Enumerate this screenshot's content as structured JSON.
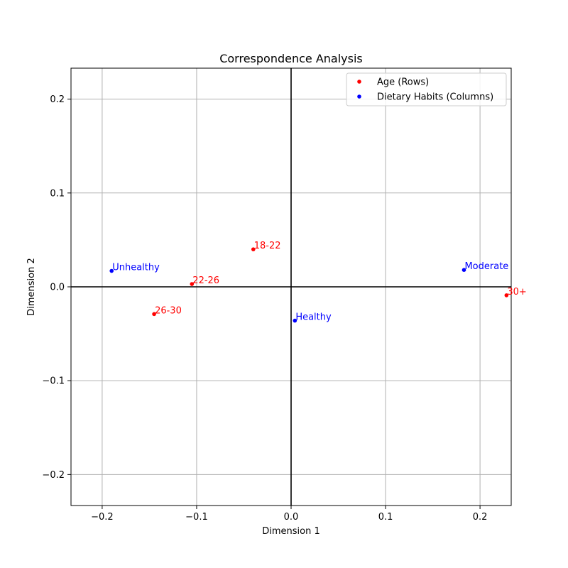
{
  "chart_data": {
    "type": "scatter",
    "title": "Correspondence Analysis",
    "xlabel": "Dimension 1",
    "ylabel": "Dimension 2",
    "xlim": [
      -0.233,
      0.233
    ],
    "ylim": [
      -0.233,
      0.233
    ],
    "xticks": [
      {
        "value": -0.2,
        "label": "−0.2"
      },
      {
        "value": -0.1,
        "label": "−0.1"
      },
      {
        "value": 0.0,
        "label": "0.0"
      },
      {
        "value": 0.1,
        "label": "0.1"
      },
      {
        "value": 0.2,
        "label": "0.2"
      }
    ],
    "yticks": [
      {
        "value": -0.2,
        "label": "−0.2"
      },
      {
        "value": -0.1,
        "label": "−0.1"
      },
      {
        "value": 0.0,
        "label": "0.0"
      },
      {
        "value": 0.1,
        "label": "0.1"
      },
      {
        "value": 0.2,
        "label": "0.2"
      }
    ],
    "grid": true,
    "reference_lines": {
      "x": 0,
      "y": 0
    },
    "legend_position": "upper-right",
    "series": [
      {
        "name": "Age (Rows)",
        "color": "#ff0000",
        "points": [
          {
            "label": "18-22",
            "x": -0.04,
            "y": 0.04
          },
          {
            "label": "22-26",
            "x": -0.105,
            "y": 0.003
          },
          {
            "label": "26-30",
            "x": -0.145,
            "y": -0.029
          },
          {
            "label": "30+",
            "x": 0.228,
            "y": -0.009
          }
        ]
      },
      {
        "name": "Dietary Habits (Columns)",
        "color": "#0000ff",
        "points": [
          {
            "label": "Unhealthy",
            "x": -0.19,
            "y": 0.017
          },
          {
            "label": "Moderate",
            "x": 0.183,
            "y": 0.018
          },
          {
            "label": "Healthy",
            "x": 0.004,
            "y": -0.036
          }
        ]
      }
    ]
  }
}
